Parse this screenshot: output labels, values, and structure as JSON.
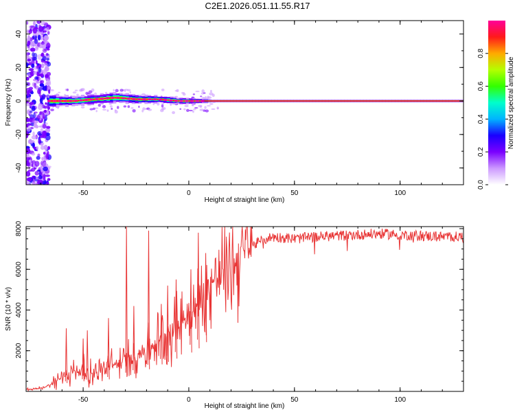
{
  "title": "C2E1.2026.051.11.55.R17",
  "colors": {
    "snr_line": "#e83535",
    "colormap": [
      "#ffffff",
      "#cc99ff",
      "#7a00ff",
      "#1a00ff",
      "#00b4ff",
      "#00ffcc",
      "#33ff00",
      "#b4ff00",
      "#ffaa00",
      "#ff1a1a",
      "#ff0099"
    ]
  },
  "chart_data": [
    {
      "type": "heatmap",
      "xlabel": "Height of straight line (km)",
      "ylabel": "Frequency (Hz)",
      "xlim": [
        -77,
        130
      ],
      "ylim": [
        -50,
        48
      ],
      "xticks": [
        "-50",
        "0",
        "50",
        "100"
      ],
      "yticks": [
        "-40",
        "-20",
        "0",
        "20",
        "40"
      ],
      "xtick_values": [
        -50,
        0,
        50,
        100
      ],
      "ytick_values": [
        -40,
        -20,
        0,
        20,
        40
      ],
      "colorbar": {
        "label": "Normalized spectral amplitude",
        "range": [
          0,
          1
        ],
        "ticks": [
          "0.0",
          "0.2",
          "0.4",
          "0.6",
          "0.8"
        ],
        "tick_values": [
          0.0,
          0.2,
          0.4,
          0.6,
          0.8
        ]
      },
      "ridge": [
        {
          "x": -77,
          "y": 0
        },
        {
          "x": -65,
          "y": 0
        },
        {
          "x": -55,
          "y": 0
        },
        {
          "x": -45,
          "y": 1
        },
        {
          "x": -35,
          "y": 2
        },
        {
          "x": -25,
          "y": 1
        },
        {
          "x": -15,
          "y": 1
        },
        {
          "x": -5,
          "y": 0
        },
        {
          "x": 5,
          "y": 0
        },
        {
          "x": 20,
          "y": 0
        },
        {
          "x": 60,
          "y": 0
        },
        {
          "x": 100,
          "y": 0
        },
        {
          "x": 130,
          "y": 0
        }
      ],
      "ridge_width_hz": [
        {
          "x": -77,
          "w": 30
        },
        {
          "x": -68,
          "w": 8
        },
        {
          "x": -55,
          "w": 5
        },
        {
          "x": -35,
          "w": 6
        },
        {
          "x": -15,
          "w": 4
        },
        {
          "x": 5,
          "w": 3
        },
        {
          "x": 10,
          "w": 1.5
        },
        {
          "x": 130,
          "w": 1.5
        }
      ]
    },
    {
      "type": "line",
      "xlabel": "Height of straight line (km)",
      "ylabel": "SNR (10 * v/v)",
      "xlim": [
        -77,
        130
      ],
      "ylim": [
        0,
        8100
      ],
      "xticks": [
        "-50",
        "0",
        "50",
        "100"
      ],
      "yticks": [
        "2000",
        "4000",
        "6000",
        "8000"
      ],
      "xtick_values": [
        -50,
        0,
        50,
        100
      ],
      "ytick_values": [
        2000,
        4000,
        6000,
        8000
      ],
      "series": [
        {
          "trend": [
            {
              "x": -77,
              "y": 100
            },
            {
              "x": -70,
              "y": 150
            },
            {
              "x": -65,
              "y": 350
            },
            {
              "x": -60,
              "y": 700
            },
            {
              "x": -55,
              "y": 1000
            },
            {
              "x": -50,
              "y": 1000
            },
            {
              "x": -45,
              "y": 900
            },
            {
              "x": -40,
              "y": 1100
            },
            {
              "x": -35,
              "y": 1300
            },
            {
              "x": -30,
              "y": 1500
            },
            {
              "x": -25,
              "y": 1800
            },
            {
              "x": -20,
              "y": 2100
            },
            {
              "x": -15,
              "y": 2500
            },
            {
              "x": -10,
              "y": 2900
            },
            {
              "x": -5,
              "y": 3300
            },
            {
              "x": 0,
              "y": 3700
            },
            {
              "x": 5,
              "y": 4300
            },
            {
              "x": 10,
              "y": 5200
            },
            {
              "x": 15,
              "y": 5800
            },
            {
              "x": 20,
              "y": 6300
            },
            {
              "x": 25,
              "y": 6800
            },
            {
              "x": 30,
              "y": 7150
            },
            {
              "x": 35,
              "y": 7450
            },
            {
              "x": 40,
              "y": 7600
            },
            {
              "x": 50,
              "y": 7500
            },
            {
              "x": 60,
              "y": 7600
            },
            {
              "x": 70,
              "y": 7650
            },
            {
              "x": 80,
              "y": 7700
            },
            {
              "x": 90,
              "y": 7750
            },
            {
              "x": 100,
              "y": 7700
            },
            {
              "x": 110,
              "y": 7650
            },
            {
              "x": 120,
              "y": 7600
            },
            {
              "x": 130,
              "y": 7600
            }
          ],
          "spikes": [
            {
              "x": -58,
              "y": 3100
            },
            {
              "x": -50,
              "y": 2600
            },
            {
              "x": -48,
              "y": 3000
            },
            {
              "x": -38,
              "y": 3600
            },
            {
              "x": -29.5,
              "y": 8100
            },
            {
              "x": -26,
              "y": 4200
            },
            {
              "x": -19,
              "y": 7900
            },
            {
              "x": -13,
              "y": 4300
            },
            {
              "x": -10,
              "y": 5200
            },
            {
              "x": -6,
              "y": 5500
            },
            {
              "x": 1,
              "y": 6000
            },
            {
              "x": 4.5,
              "y": 7800
            },
            {
              "x": 8,
              "y": 6800
            }
          ]
        }
      ]
    }
  ]
}
